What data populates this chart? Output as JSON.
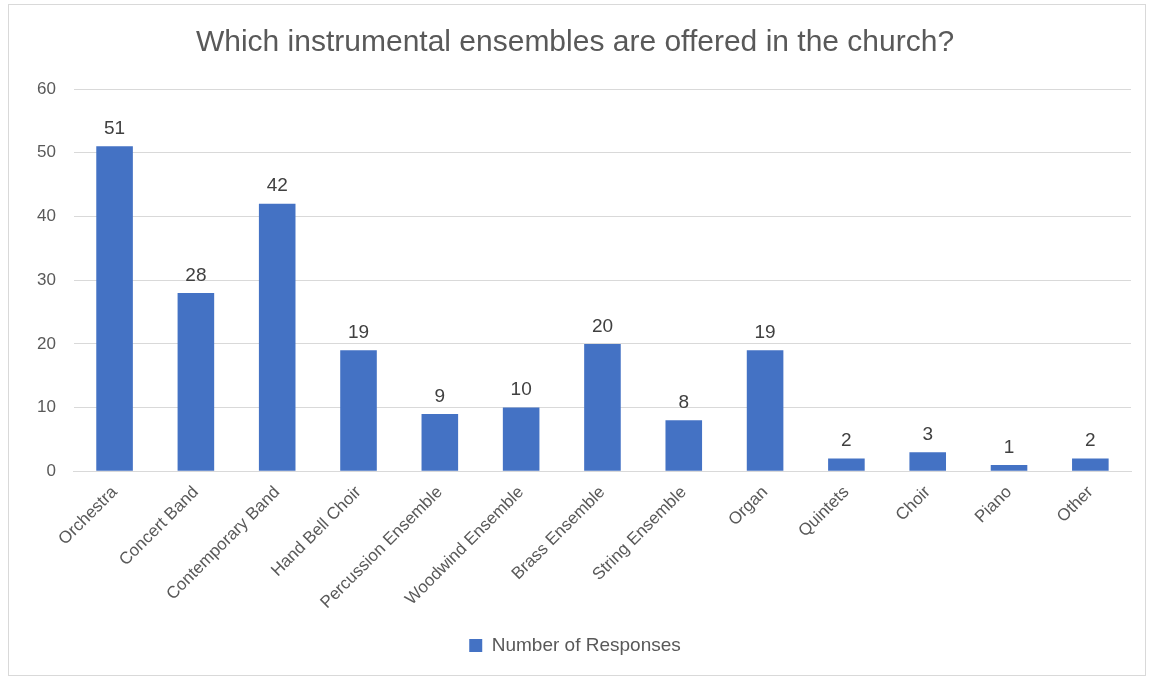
{
  "chart_data": {
    "type": "bar",
    "title": "Which instrumental ensembles are offered in the church?",
    "categories": [
      "Orchestra",
      "Concert Band",
      "Contemporary Band",
      "Hand Bell Choir",
      "Percussion Ensemble",
      "Woodwind Ensemble",
      "Brass Ensemble",
      "String Ensemble",
      "Organ",
      "Quintets",
      "Choir",
      "Piano",
      "Other"
    ],
    "series": [
      {
        "name": "Number of Responses",
        "color": "#4472c4",
        "values": [
          51,
          28,
          42,
          19,
          9,
          10,
          20,
          8,
          19,
          2,
          3,
          1,
          2
        ]
      }
    ],
    "ylim": [
      0,
      60
    ],
    "yticks": [
      0,
      10,
      20,
      30,
      40,
      50,
      60
    ],
    "grid": "y",
    "legend": "bottom",
    "data_labels": true
  }
}
